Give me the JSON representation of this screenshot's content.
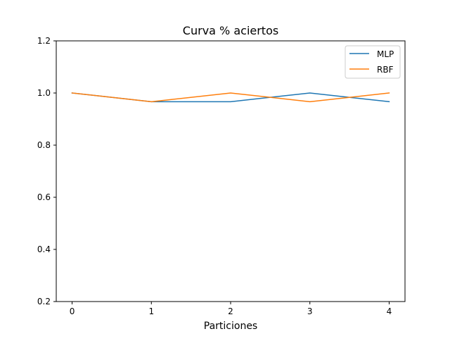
{
  "chart_data": {
    "type": "line",
    "title": "Curva % aciertos",
    "xlabel": "Particiones",
    "ylabel": "",
    "x": [
      0,
      1,
      2,
      3,
      4
    ],
    "xticks": [
      "0",
      "1",
      "2",
      "3",
      "4"
    ],
    "yticks": [
      "0.2",
      "0.4",
      "0.6",
      "0.8",
      "1.0",
      "1.2"
    ],
    "xlim": [
      -0.2,
      4.2
    ],
    "ylim": [
      0.2,
      1.2
    ],
    "grid": false,
    "legend_position": "top-right",
    "series": [
      {
        "name": "MLP",
        "color": "#1f77b4",
        "values": [
          1.0,
          0.9667,
          0.9667,
          1.0,
          0.9667
        ]
      },
      {
        "name": "RBF",
        "color": "#ff7f0e",
        "values": [
          1.0,
          0.9667,
          1.0,
          0.9667,
          1.0
        ]
      }
    ]
  }
}
